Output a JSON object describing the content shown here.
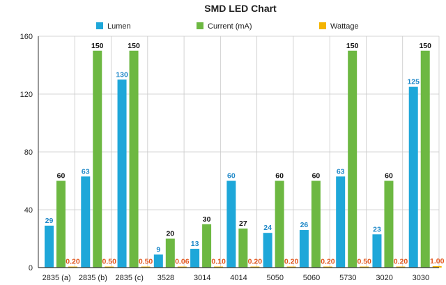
{
  "chart_data": {
    "type": "bar",
    "title": "SMD LED Chart",
    "xlabel": "",
    "ylabel": "",
    "ylim": [
      0,
      160
    ],
    "yticks": [
      0,
      40,
      80,
      120,
      160
    ],
    "grid": true,
    "legend_position": "top",
    "categories": [
      "2835 (a)",
      "2835 (b)",
      "2835 (c)",
      "3528",
      "3014",
      "4014",
      "5050",
      "5060",
      "5730",
      "3020",
      "3030"
    ],
    "series": [
      {
        "name": "Lumen",
        "color": "#1EA7D9",
        "label_color": "#1E88C8",
        "values": [
          29,
          63,
          130,
          9,
          13,
          60,
          24,
          26,
          63,
          23,
          125
        ],
        "labels": [
          "29",
          "63",
          "130",
          "9",
          "13",
          "60",
          "24",
          "26",
          "63",
          "23",
          "125"
        ]
      },
      {
        "name": "Current (mA)",
        "color": "#6DB842",
        "label_color": "#111111",
        "values": [
          60,
          150,
          150,
          20,
          30,
          27,
          60,
          60,
          150,
          60,
          150
        ],
        "labels": [
          "60",
          "150",
          "150",
          "20",
          "30",
          "27",
          "60",
          "60",
          "150",
          "60",
          "150"
        ]
      },
      {
        "name": "Wattage",
        "color": "#F4B400",
        "label_color": "#E2541B",
        "values": [
          0.2,
          0.5,
          0.5,
          0.06,
          0.1,
          0.2,
          0.2,
          0.2,
          0.5,
          0.2,
          1.0
        ],
        "labels": [
          "0.20",
          "0.50",
          "0.50",
          "0.06",
          "0.10",
          "0.20",
          "0.20",
          "0.20",
          "0.50",
          "0.20",
          "1.00"
        ]
      }
    ]
  }
}
